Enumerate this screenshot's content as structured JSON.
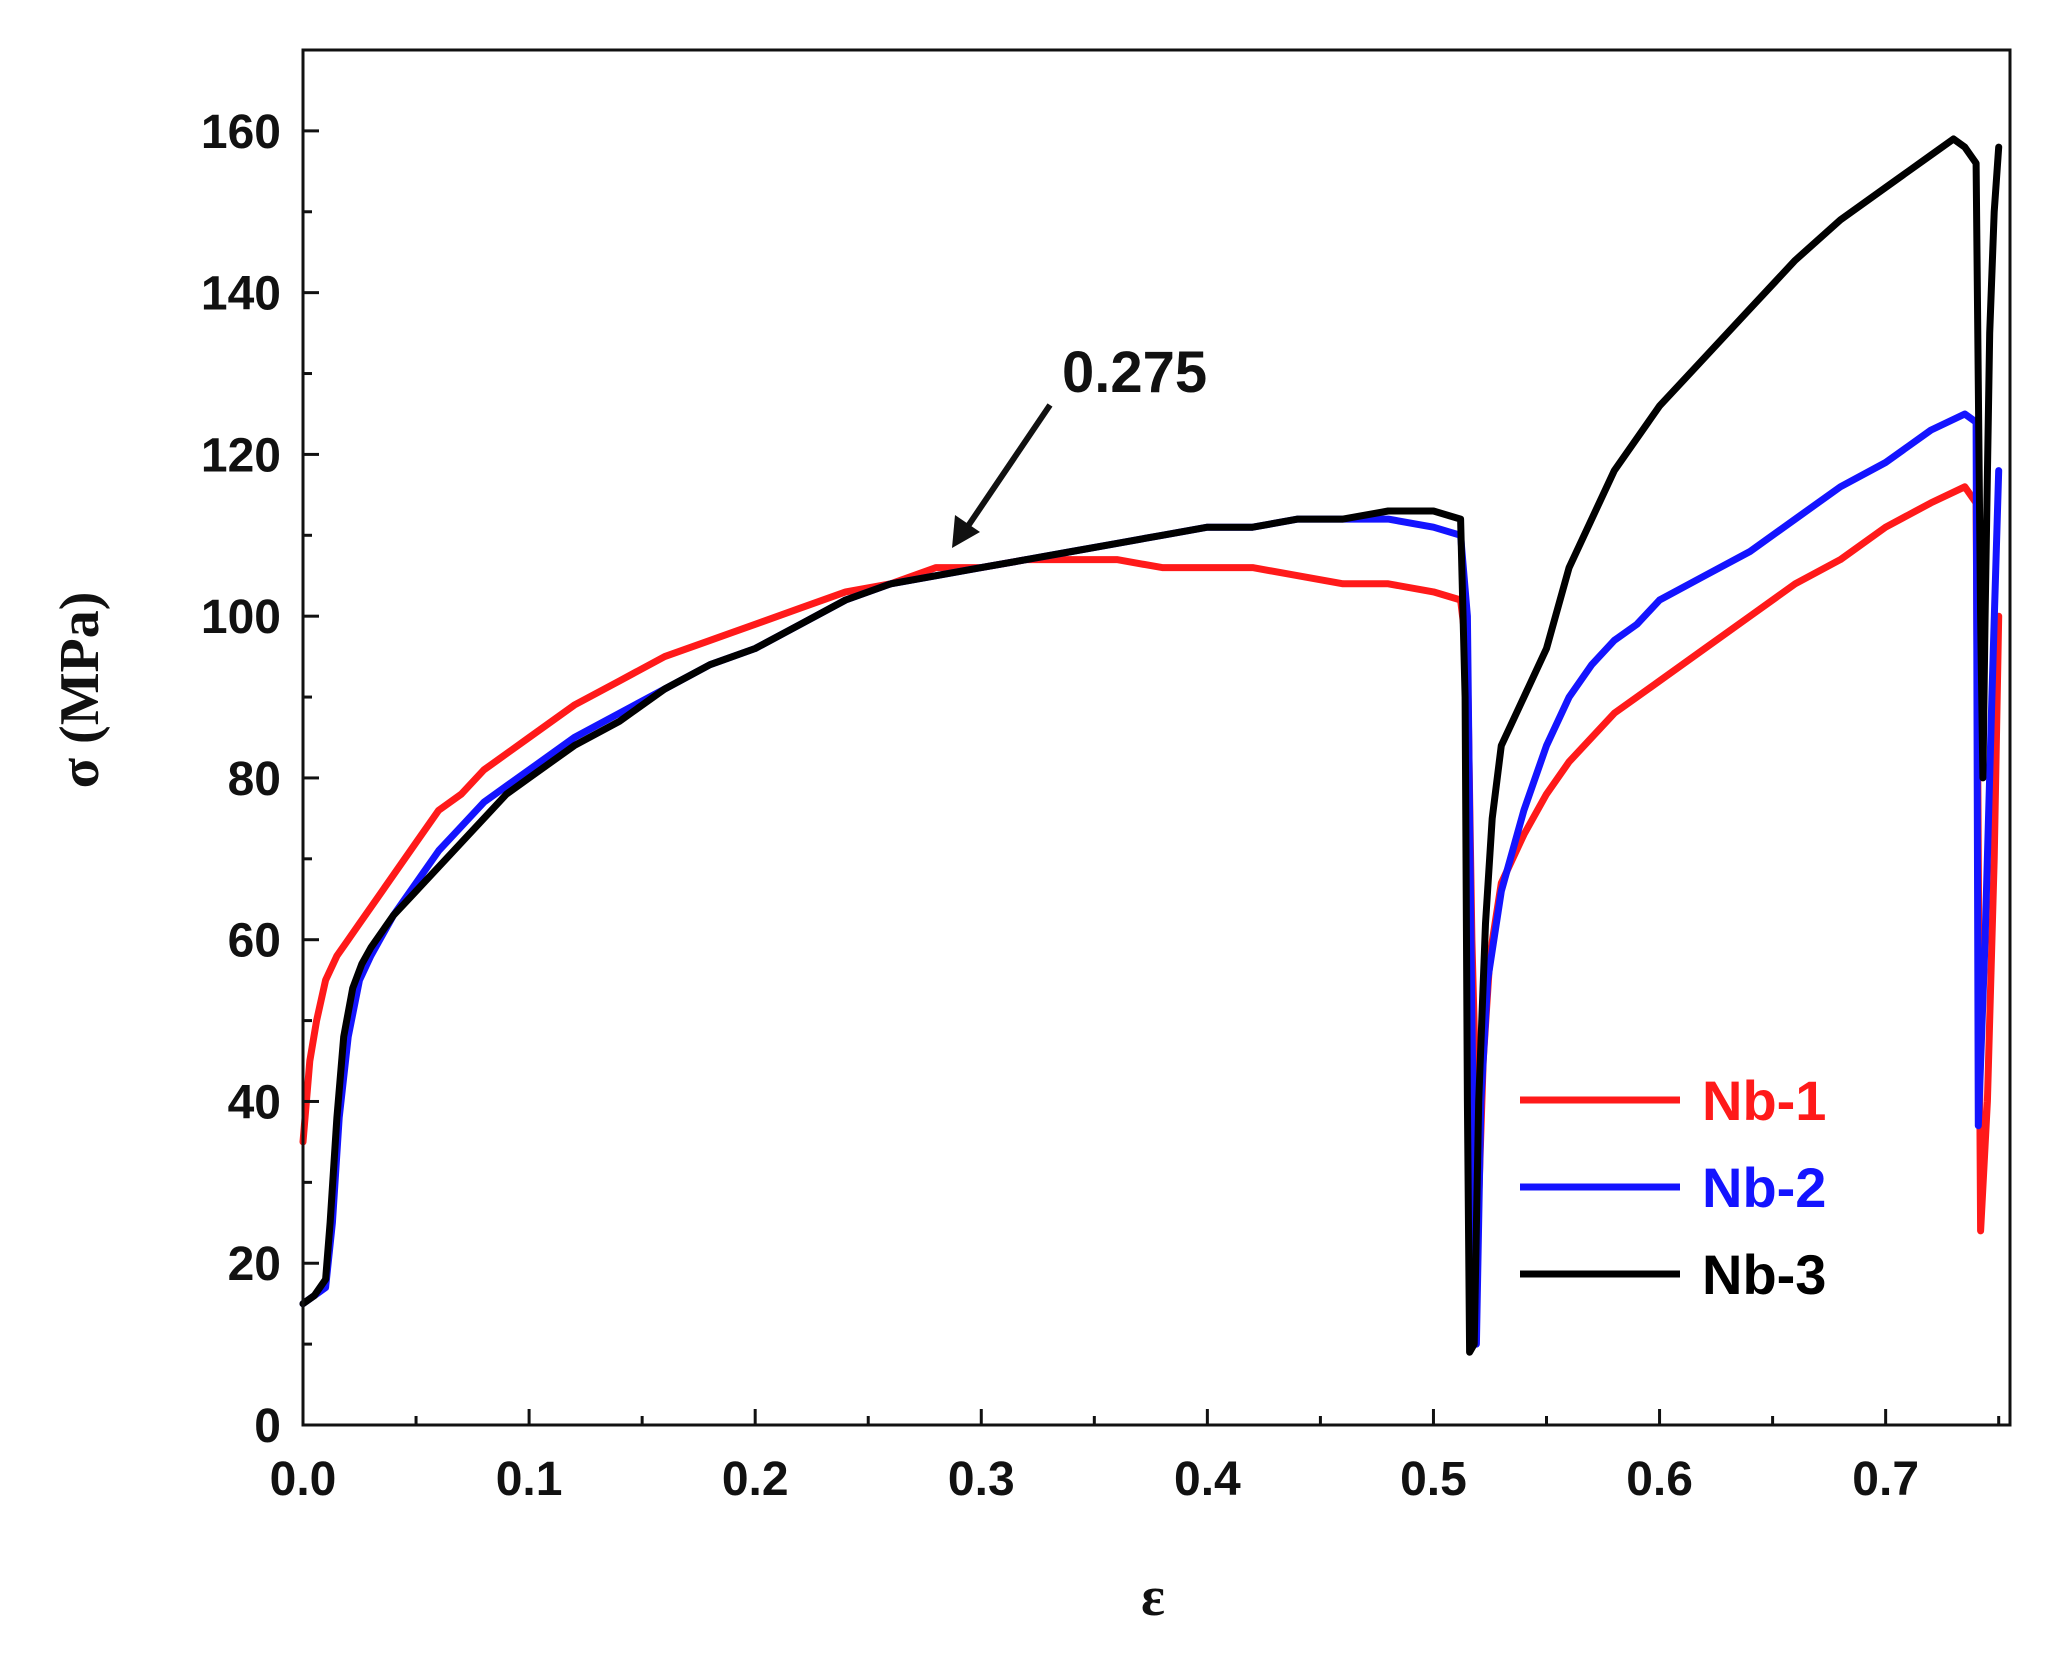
{
  "chart_data": {
    "type": "line",
    "title": "",
    "xlabel": "ε",
    "ylabel": "σ (MPa)",
    "xlim": [
      0.0,
      0.755
    ],
    "ylim": [
      0,
      170
    ],
    "x_ticks": [
      {
        "value": 0.0,
        "label": "0.0"
      },
      {
        "value": 0.1,
        "label": "0.1"
      },
      {
        "value": 0.2,
        "label": "0.2"
      },
      {
        "value": 0.3,
        "label": "0.3"
      },
      {
        "value": 0.4,
        "label": "0.4"
      },
      {
        "value": 0.5,
        "label": "0.5"
      },
      {
        "value": 0.6,
        "label": "0.6"
      },
      {
        "value": 0.7,
        "label": "0.7"
      }
    ],
    "y_ticks": [
      {
        "value": 0,
        "label": "0"
      },
      {
        "value": 20,
        "label": "20"
      },
      {
        "value": 40,
        "label": "40"
      },
      {
        "value": 60,
        "label": "60"
      },
      {
        "value": 80,
        "label": "80"
      },
      {
        "value": 100,
        "label": "100"
      },
      {
        "value": 120,
        "label": "120"
      },
      {
        "value": 140,
        "label": "140"
      },
      {
        "value": 160,
        "label": "160"
      }
    ],
    "x_minor_step": 0.05,
    "y_minor_step": 10,
    "grid": false,
    "legend_position": "bottom-right",
    "annotation": {
      "label": "0.275",
      "x": 0.29,
      "y": 108
    },
    "series": [
      {
        "name": "Nb-1",
        "color": "#ff1a1a",
        "x": [
          0.0,
          0.003,
          0.006,
          0.01,
          0.015,
          0.02,
          0.025,
          0.03,
          0.035,
          0.04,
          0.05,
          0.06,
          0.07,
          0.08,
          0.09,
          0.1,
          0.12,
          0.14,
          0.16,
          0.18,
          0.2,
          0.22,
          0.24,
          0.26,
          0.28,
          0.3,
          0.32,
          0.34,
          0.36,
          0.38,
          0.4,
          0.42,
          0.44,
          0.46,
          0.48,
          0.5,
          0.512,
          0.515,
          0.517,
          0.52,
          0.522,
          0.525,
          0.53,
          0.54,
          0.55,
          0.56,
          0.58,
          0.6,
          0.62,
          0.64,
          0.66,
          0.68,
          0.7,
          0.72,
          0.735,
          0.74,
          0.742,
          0.745,
          0.748,
          0.75
        ],
        "y": [
          35,
          45,
          50,
          55,
          58,
          60,
          62,
          64,
          66,
          68,
          72,
          76,
          78,
          81,
          83,
          85,
          89,
          92,
          95,
          97,
          99,
          101,
          103,
          104,
          106,
          106,
          107,
          107,
          107,
          106,
          106,
          106,
          105,
          104,
          104,
          103,
          102,
          95,
          60,
          28,
          45,
          58,
          67,
          73,
          78,
          82,
          88,
          92,
          96,
          100,
          104,
          107,
          111,
          114,
          116,
          114,
          24,
          40,
          70,
          100
        ]
      },
      {
        "name": "Nb-2",
        "color": "#1414ff",
        "x": [
          0.0,
          0.005,
          0.01,
          0.013,
          0.016,
          0.02,
          0.025,
          0.03,
          0.04,
          0.05,
          0.06,
          0.07,
          0.08,
          0.09,
          0.1,
          0.12,
          0.14,
          0.16,
          0.18,
          0.2,
          0.22,
          0.24,
          0.26,
          0.28,
          0.3,
          0.32,
          0.34,
          0.36,
          0.38,
          0.4,
          0.42,
          0.44,
          0.46,
          0.48,
          0.5,
          0.512,
          0.515,
          0.517,
          0.519,
          0.521,
          0.524,
          0.53,
          0.54,
          0.55,
          0.56,
          0.57,
          0.58,
          0.59,
          0.6,
          0.62,
          0.64,
          0.66,
          0.68,
          0.7,
          0.72,
          0.735,
          0.74,
          0.741,
          0.744,
          0.747,
          0.75
        ],
        "y": [
          15,
          16,
          17,
          25,
          38,
          48,
          55,
          58,
          63,
          67,
          71,
          74,
          77,
          79,
          81,
          85,
          88,
          91,
          94,
          96,
          99,
          102,
          104,
          105,
          106,
          107,
          108,
          109,
          110,
          111,
          111,
          112,
          112,
          112,
          111,
          110,
          100,
          50,
          10,
          40,
          55,
          66,
          76,
          84,
          90,
          94,
          97,
          99,
          102,
          105,
          108,
          112,
          116,
          119,
          123,
          125,
          124,
          37,
          60,
          90,
          118
        ]
      },
      {
        "name": "Nb-3",
        "color": "#000000",
        "x": [
          0.0,
          0.005,
          0.01,
          0.012,
          0.015,
          0.018,
          0.022,
          0.026,
          0.03,
          0.04,
          0.05,
          0.06,
          0.07,
          0.08,
          0.09,
          0.1,
          0.12,
          0.14,
          0.16,
          0.18,
          0.2,
          0.22,
          0.24,
          0.26,
          0.28,
          0.3,
          0.32,
          0.34,
          0.36,
          0.38,
          0.4,
          0.42,
          0.44,
          0.46,
          0.48,
          0.5,
          0.512,
          0.514,
          0.515,
          0.516,
          0.518,
          0.52,
          0.523,
          0.526,
          0.53,
          0.54,
          0.55,
          0.56,
          0.58,
          0.6,
          0.62,
          0.64,
          0.66,
          0.68,
          0.7,
          0.72,
          0.73,
          0.735,
          0.74,
          0.742,
          0.743,
          0.744,
          0.746,
          0.748,
          0.75
        ],
        "y": [
          15,
          16,
          18,
          25,
          38,
          48,
          54,
          57,
          59,
          63,
          66,
          69,
          72,
          75,
          78,
          80,
          84,
          87,
          91,
          94,
          96,
          99,
          102,
          104,
          105,
          106,
          107,
          108,
          109,
          110,
          111,
          111,
          112,
          112,
          113,
          113,
          112,
          90,
          40,
          9,
          10,
          40,
          62,
          75,
          84,
          90,
          96,
          106,
          118,
          126,
          132,
          138,
          144,
          149,
          153,
          157,
          159,
          158,
          156,
          100,
          80,
          100,
          135,
          150,
          158
        ]
      }
    ]
  }
}
